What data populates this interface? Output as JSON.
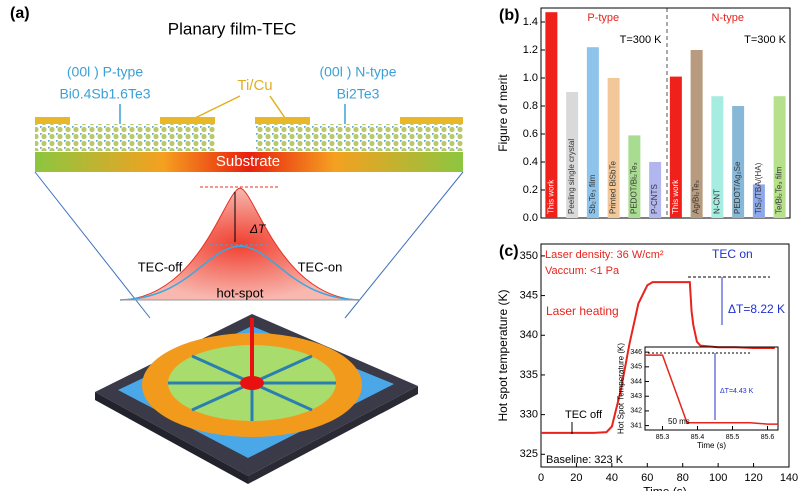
{
  "diagram": {
    "panel_label": "(a)",
    "title": "Planary film-TEC",
    "p_type": "(00l ) P-type",
    "p_formula": "Bi0.4Sb1.6Te3",
    "contact": "Ti/Cu",
    "n_type": "(00l ) N-type",
    "n_formula": "Bi2Te3",
    "substrate": "Substrate",
    "delta": "ΔT",
    "tec_off": "TEC-off",
    "tec_on": "TEC-on",
    "hot_spot": "hot-spot"
  },
  "chart_data": [
    {
      "type": "bar",
      "panel_label": "(b)",
      "ylabel": "Figure of merit",
      "groups": [
        "P-type",
        "N-type"
      ],
      "temperature": [
        "T=300 K",
        "T=300 K"
      ],
      "categories": [
        "This work",
        "Peeling single crystal",
        "Sb₂Te₃ film",
        "Printed BiSbTe",
        "PEDOT/Bi₂Te₃",
        "P-CNTS",
        "This work",
        "Ag/Bi₂Te₃",
        "N-CNT",
        "PEDOT/Ag₂Se",
        "TiS₂/TBA/(HA)",
        "Te/Bi₂Te₃ film"
      ],
      "values": [
        1.47,
        0.9,
        1.22,
        1.0,
        0.59,
        0.4,
        1.01,
        1.2,
        0.87,
        0.8,
        0.24,
        0.87
      ],
      "colors": [
        "#f0201a",
        "#d9d9d9",
        "#8ec4ec",
        "#f2c89a",
        "#a8dc90",
        "#b2b6ee",
        "#f0201a",
        "#b89a7e",
        "#a6ece0",
        "#88b8d8",
        "#8ea8ec",
        "#b6e08c"
      ],
      "ylim": [
        0,
        1.5
      ],
      "yticks": [
        {
          "value": 0,
          "label": "0.0"
        },
        0.2,
        0.4,
        0.6,
        0.8,
        {
          "value": 1,
          "label": "1.0"
        },
        1.2,
        1.4
      ]
    },
    {
      "type": "line",
      "panel_label": "(c)",
      "xlabel": "Time (s)",
      "ylabel": "Hot spot temperature (K)",
      "color": "#e8231c",
      "x": [
        0,
        10,
        20,
        30,
        37,
        40,
        45,
        50,
        55,
        60,
        63,
        70,
        80,
        84,
        85,
        86,
        88,
        90,
        100,
        110,
        120,
        132
      ],
      "values": [
        327.7,
        327.7,
        327.7,
        327.7,
        327.8,
        328.5,
        333,
        339,
        344,
        346.3,
        346.7,
        346.7,
        346.7,
        346.7,
        343,
        341.3,
        339.2,
        338.7,
        338.5,
        338.5,
        338.4,
        338.4
      ],
      "xlim": [
        0,
        140
      ],
      "xticks": [
        0,
        20,
        40,
        60,
        80,
        100,
        120,
        140
      ],
      "ylim": [
        323.4,
        351.5
      ],
      "yticks": [
        325,
        330,
        335,
        340,
        345,
        350
      ],
      "annotations": [
        "Laser density: 36 W/cm²",
        "Vaccum: <1 Pa",
        "TEC on",
        "Laser heating",
        "ΔT=8.22 K",
        "TEC off",
        "Baseline: 323 K"
      ]
    },
    {
      "type": "line",
      "xlabel": "Time (s)",
      "ylabel": "Hot Spot Temperature (K)",
      "color": "#e8231c",
      "x": [
        85.25,
        85.3,
        85.37,
        85.45,
        85.55,
        85.6,
        85.63
      ],
      "values": [
        345.8,
        345.8,
        341.2,
        341.2,
        341.2,
        341.1,
        341.1
      ],
      "xlim": [
        85.25,
        85.63
      ],
      "xticks": [
        85.3,
        85.4,
        85.5,
        85.6
      ],
      "ylim": [
        340.7,
        346.35
      ],
      "yticks": [
        341,
        342,
        343,
        344,
        345,
        346
      ],
      "annotations": [
        "ΔT=4.43 K",
        "50 ms"
      ]
    }
  ]
}
